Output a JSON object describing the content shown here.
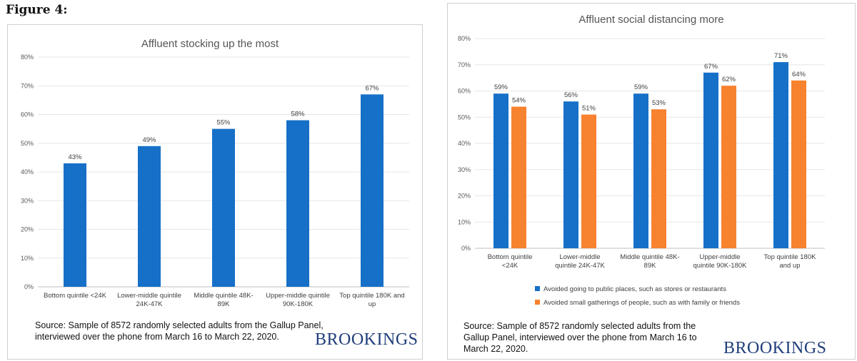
{
  "figure_label": "Figure 4:",
  "colors": {
    "blue": "#1670C8",
    "orange": "#F7822F",
    "brand": "#1f3d7a"
  },
  "chart_data": [
    {
      "type": "bar",
      "title": "Affluent stocking up the most",
      "categories": [
        [
          "Bottom quintile <24K"
        ],
        [
          "Lower-middle quintile",
          "24K-47K"
        ],
        [
          "Middle quintile 48K-",
          "89K"
        ],
        [
          "Upper-middle quintile",
          "90K-180K"
        ],
        [
          "Top quintile 180K and",
          "up"
        ]
      ],
      "series": [
        {
          "name": "",
          "values": [
            43,
            49,
            55,
            58,
            67
          ],
          "labels": [
            "43%",
            "49%",
            "55%",
            "58%",
            "67%"
          ]
        }
      ],
      "yticks": [
        "0%",
        "10%",
        "20%",
        "30%",
        "40%",
        "50%",
        "60%",
        "70%",
        "80%"
      ],
      "ylim": [
        0,
        80
      ],
      "xlabel": "",
      "ylabel": ""
    },
    {
      "type": "bar",
      "title": "Affluent social distancing more",
      "categories": [
        [
          "Bottom quintile",
          "<24K"
        ],
        [
          "Lower-middle",
          "quintile 24K-47K"
        ],
        [
          "Middle quintile 48K-",
          "89K"
        ],
        [
          "Upper-middle",
          "quintile 90K-180K"
        ],
        [
          "Top quintile 180K",
          "and up"
        ]
      ],
      "series": [
        {
          "name": "Avoided going to public places, such as stores or restaurants",
          "values": [
            59,
            56,
            59,
            67,
            71
          ],
          "labels": [
            "59%",
            "56%",
            "59%",
            "67%",
            "71%"
          ]
        },
        {
          "name": "Avoided small gatherings of people, such as with family or friends",
          "values": [
            54,
            51,
            53,
            62,
            64
          ],
          "labels": [
            "54%",
            "51%",
            "53%",
            "62%",
            "64%"
          ]
        }
      ],
      "yticks": [
        "0%",
        "10%",
        "20%",
        "30%",
        "40%",
        "50%",
        "60%",
        "70%",
        "80%"
      ],
      "ylim": [
        0,
        80
      ],
      "xlabel": "",
      "ylabel": ""
    }
  ],
  "left_panel": {
    "source_lines": [
      "Source: Sample of 8572 randomly selected adults from the Gallup Panel,",
      "interviewed over the phone from March 16 to March 22, 2020."
    ],
    "brand": "BROOKINGS"
  },
  "right_panel": {
    "source_lines": [
      "Source: Sample of 8572 randomly selected adults from the",
      "Gallup Panel, interviewed over the phone from March 16 to",
      "March 22, 2020."
    ],
    "brand": "BROOKINGS"
  }
}
